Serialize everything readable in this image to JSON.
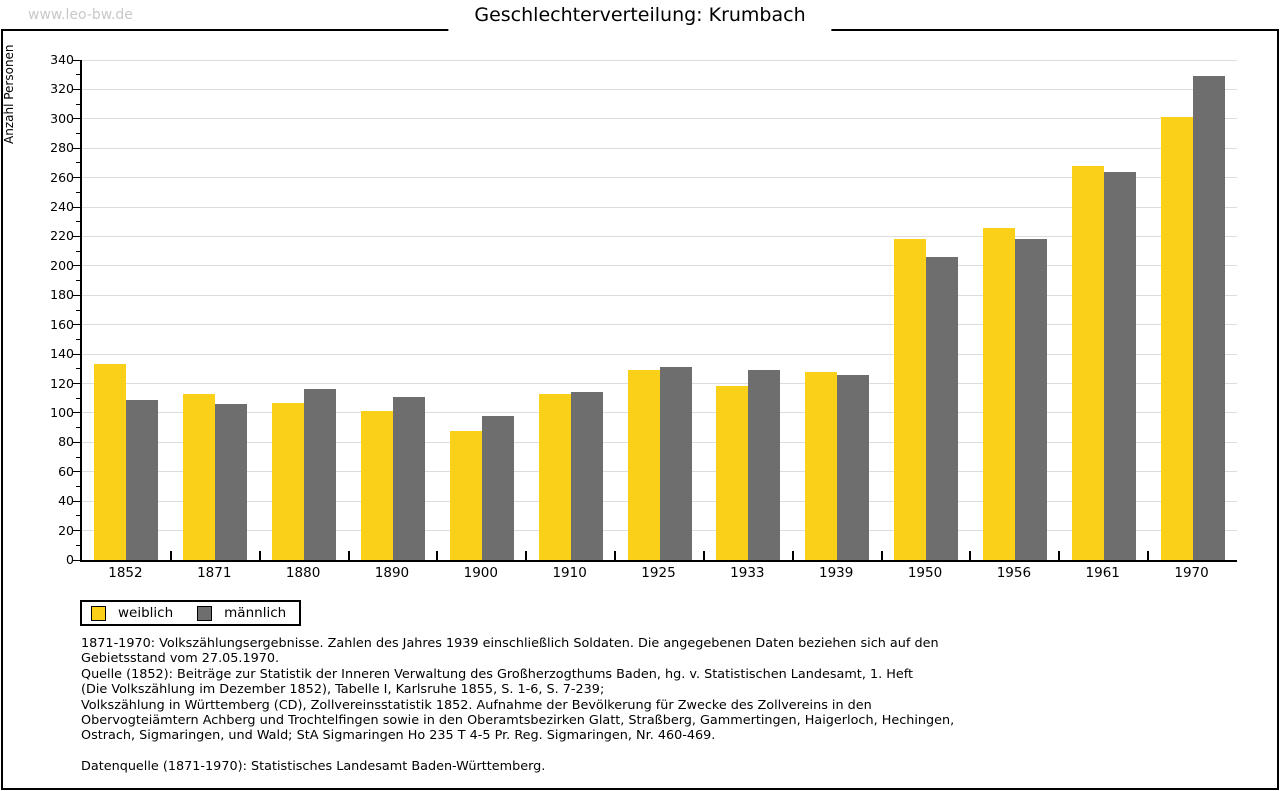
{
  "page": {
    "watermark": "www.leo-bw.de",
    "title": "Geschlechterverteilung: Krumbach",
    "colors": {
      "weiblich": "#fbd019",
      "maennlich": "#6e6e6e",
      "gridline": "#dcdcdc",
      "axis": "#000000",
      "watermark": "#c8c8c8"
    }
  },
  "chart_data": {
    "type": "bar",
    "title": "Geschlechterverteilung: Krumbach",
    "xlabel": "",
    "ylabel": "Anzahl Personen",
    "categories": [
      "1852",
      "1871",
      "1880",
      "1890",
      "1900",
      "1910",
      "1925",
      "1933",
      "1939",
      "1950",
      "1956",
      "1961",
      "1970"
    ],
    "series": [
      {
        "name": "weiblich",
        "color": "#fbd019",
        "values": [
          133,
          113,
          107,
          101,
          88,
          113,
          129,
          118,
          128,
          218,
          226,
          268,
          301
        ]
      },
      {
        "name": "männlich",
        "color": "#6e6e6e",
        "values": [
          109,
          106,
          116,
          111,
          98,
          114,
          131,
          129,
          126,
          206,
          218,
          264,
          329
        ]
      }
    ],
    "ylim": [
      0,
      340
    ],
    "y_tick_step": 20,
    "y_minor_tick_step": 10,
    "grid": true,
    "legend_position": "bottom-left"
  },
  "legend": {
    "items": [
      {
        "label": "weiblich",
        "color": "#fbd019"
      },
      {
        "label": "männlich",
        "color": "#6e6e6e"
      }
    ]
  },
  "footnotes": {
    "lines": [
      "1871-1970: Volkszählungsergebnisse. Zahlen des Jahres 1939 einschließlich Soldaten. Die angegebenen Daten beziehen sich auf den",
      "Gebietsstand vom 27.05.1970.",
      "Quelle (1852): Beiträge zur Statistik der Inneren Verwaltung des Großherzogthums Baden, hg. v. Statistischen Landesamt, 1. Heft",
      "(Die Volkszählung im Dezember 1852), Tabelle I, Karlsruhe 1855, S. 1-6, S. 7-239;",
      "Volkszählung in Württemberg (CD), Zollvereinsstatistik 1852. Aufnahme der Bevölkerung für Zwecke des Zollvereins in den",
      "Obervogteiämtern Achberg und Trochtelfingen sowie in den Oberamtsbezirken Glatt, Straßberg, Gammertingen, Haigerloch, Hechingen,",
      "Ostrach, Sigmaringen, und Wald; StA Sigmaringen Ho 235 T 4-5 Pr. Reg. Sigmaringen, Nr. 460-469."
    ],
    "datasource": "Datenquelle (1871-1970): Statistisches Landesamt Baden-Württemberg."
  }
}
